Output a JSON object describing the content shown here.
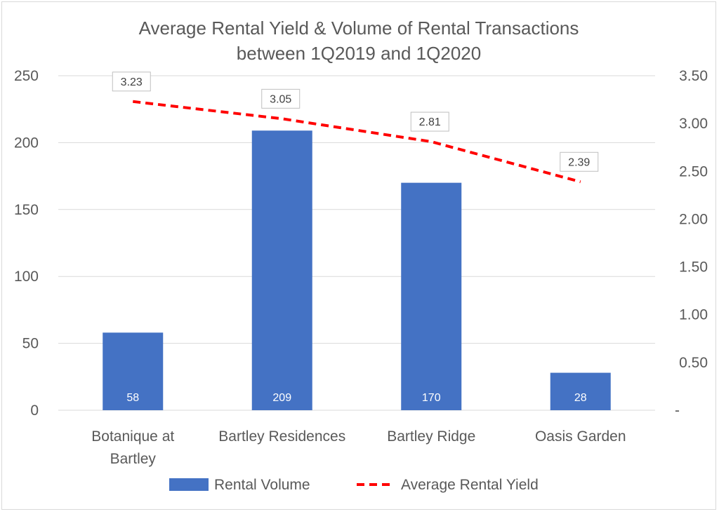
{
  "chart_data": {
    "type": "bar",
    "title": "Average Rental Yield & Volume of Rental Transactions between 1Q2019 and 1Q2020",
    "title_lines": [
      "Average Rental Yield & Volume of Rental Transactions",
      "between 1Q2019 and 1Q2020"
    ],
    "categories": [
      "Botanique at Bartley",
      "Bartley Residences",
      "Bartley Ridge",
      "Oasis Garden"
    ],
    "category_lines": [
      [
        "Botanique at",
        "Bartley"
      ],
      [
        "Bartley Residences"
      ],
      [
        "Bartley Ridge"
      ],
      [
        "Oasis Garden"
      ]
    ],
    "series": [
      {
        "name": "Rental Volume",
        "type": "bar",
        "axis": "left",
        "color": "#4472c4",
        "values": [
          58,
          209,
          170,
          28
        ],
        "labels": [
          "58",
          "209",
          "170",
          "28"
        ]
      },
      {
        "name": "Average Rental Yield",
        "type": "line",
        "axis": "right",
        "style": "dashed",
        "color": "#ff0000",
        "values": [
          3.23,
          3.05,
          2.81,
          2.39
        ],
        "labels": [
          "3.23",
          "3.05",
          "2.81",
          "2.39"
        ]
      }
    ],
    "y_left": {
      "lim": [
        0,
        250
      ],
      "ticks": [
        0,
        50,
        100,
        150,
        200,
        250
      ],
      "tick_labels": [
        "0",
        "50",
        "100",
        "150",
        "200",
        "250"
      ]
    },
    "y_right": {
      "lim": [
        0,
        3.5
      ],
      "ticks": [
        0,
        0.5,
        1,
        1.5,
        2,
        2.5,
        3,
        3.5
      ],
      "tick_labels": [
        "-",
        "0.50",
        "1.00",
        "1.50",
        "2.00",
        "2.50",
        "3.00",
        "3.50"
      ]
    },
    "grid": true,
    "legend": "bottom",
    "colors": {
      "grid": "#d9d9d9",
      "text": "#595959",
      "border": "#d9d9d9"
    }
  }
}
